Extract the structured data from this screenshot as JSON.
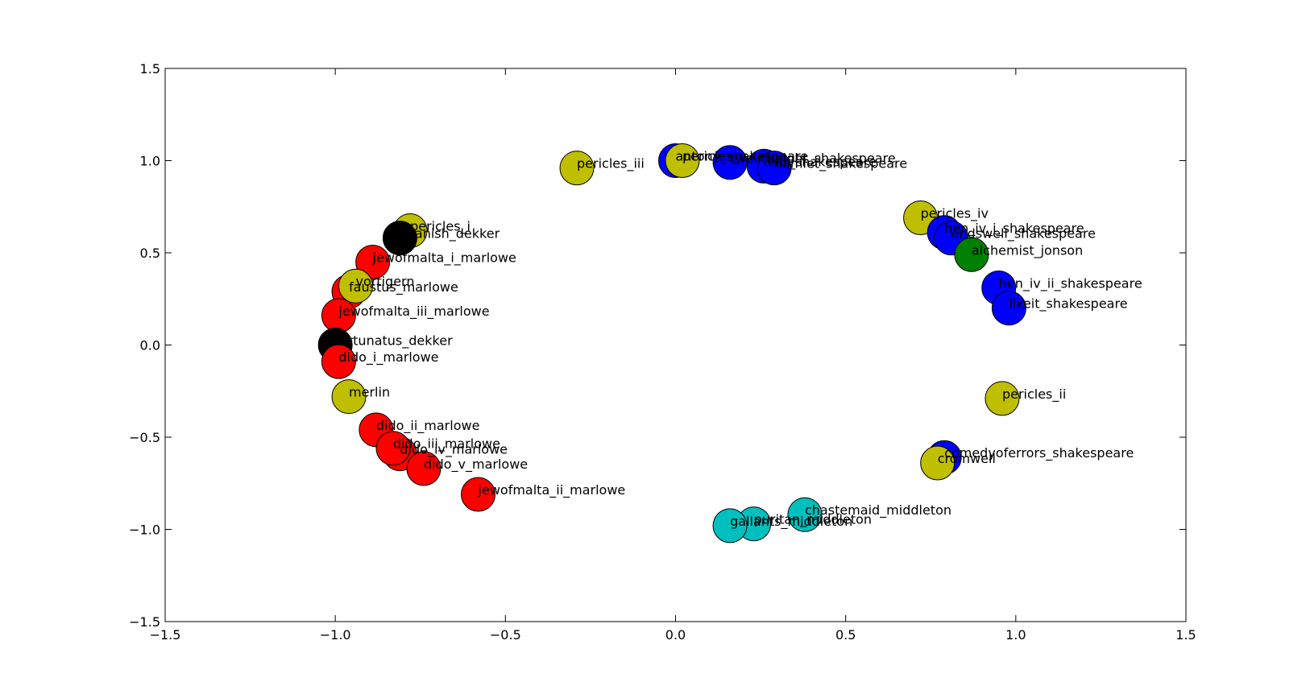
{
  "chart_data": {
    "type": "scatter",
    "title": "",
    "xlabel": "",
    "ylabel": "",
    "xlim": [
      -1.5,
      1.5
    ],
    "ylim": [
      -1.5,
      1.5
    ],
    "grid": false,
    "legend": "none",
    "xticks": [
      "−1.5",
      "−1.0",
      "−0.5",
      "0.0",
      "0.5",
      "1.0",
      "1.5"
    ],
    "yticks": [
      "−1.5",
      "−1.0",
      "−0.5",
      "0.0",
      "0.5",
      "1.0",
      "1.5"
    ],
    "xtick_values": [
      -1.5,
      -1.0,
      -0.5,
      0.0,
      0.5,
      1.0,
      1.5
    ],
    "ytick_values": [
      -1.5,
      -1.0,
      -0.5,
      0.0,
      0.5,
      1.0,
      1.5
    ],
    "colors": {
      "red": "#ff0000",
      "olive": "#bfbf00",
      "black": "#000000",
      "blue": "#0000ff",
      "green": "#008000",
      "cyan": "#00bfbf"
    },
    "points": [
      {
        "label": "pericles_i",
        "x": -0.78,
        "y": 0.62,
        "color": "olive"
      },
      {
        "label": "spanish_dekker",
        "x": -0.81,
        "y": 0.58,
        "color": "black"
      },
      {
        "label": "jewofmalta_i_marlowe",
        "x": -0.89,
        "y": 0.45,
        "color": "red"
      },
      {
        "label": "faustus_marlowe",
        "x": -0.96,
        "y": 0.29,
        "color": "red"
      },
      {
        "label": "vortigern",
        "x": -0.94,
        "y": 0.32,
        "color": "olive"
      },
      {
        "label": "jewofmalta_iii_marlowe",
        "x": -0.99,
        "y": 0.16,
        "color": "red"
      },
      {
        "label": "fortunatus_dekker",
        "x": -1.0,
        "y": 0.0,
        "color": "black"
      },
      {
        "label": "dido_i_marlowe",
        "x": -0.99,
        "y": -0.09,
        "color": "red"
      },
      {
        "label": "merlin",
        "x": -0.96,
        "y": -0.28,
        "color": "olive"
      },
      {
        "label": "dido_ii_marlowe",
        "x": -0.88,
        "y": -0.46,
        "color": "red"
      },
      {
        "label": "dido_iv_marlowe",
        "x": -0.81,
        "y": -0.59,
        "color": "red"
      },
      {
        "label": "dido_iii_marlowe",
        "x": -0.83,
        "y": -0.56,
        "color": "red"
      },
      {
        "label": "dido_v_marlowe",
        "x": -0.74,
        "y": -0.67,
        "color": "red"
      },
      {
        "label": "jewofmalta_ii_marlowe",
        "x": -0.58,
        "y": -0.81,
        "color": "red"
      },
      {
        "label": "pericles_iii",
        "x": -0.29,
        "y": 0.96,
        "color": "olive"
      },
      {
        "label": "antony_shakespeare",
        "x": 0.0,
        "y": 1.0,
        "color": "blue"
      },
      {
        "label": "pericles_v",
        "x": 0.02,
        "y": 1.0,
        "color": "olive"
      },
      {
        "label": "twelfthnight_shakespeare",
        "x": 0.16,
        "y": 0.99,
        "color": "blue"
      },
      {
        "label": "lear_shakespeare",
        "x": 0.26,
        "y": 0.97,
        "color": "blue"
      },
      {
        "label": "hamlet_shakespeare",
        "x": 0.29,
        "y": 0.96,
        "color": "blue"
      },
      {
        "label": "pericles_iv",
        "x": 0.72,
        "y": 0.69,
        "color": "olive"
      },
      {
        "label": "hen_iv_i_shakespeare",
        "x": 0.79,
        "y": 0.61,
        "color": "blue"
      },
      {
        "label": "endswell_shakespeare",
        "x": 0.81,
        "y": 0.58,
        "color": "blue"
      },
      {
        "label": "alchemist_jonson",
        "x": 0.87,
        "y": 0.49,
        "color": "green"
      },
      {
        "label": "hen_iv_ii_shakespeare",
        "x": 0.95,
        "y": 0.31,
        "color": "blue"
      },
      {
        "label": "likeit_shakespeare",
        "x": 0.98,
        "y": 0.2,
        "color": "blue"
      },
      {
        "label": "pericles_ii",
        "x": 0.96,
        "y": -0.29,
        "color": "olive"
      },
      {
        "label": "comedyoferrors_shakespeare",
        "x": 0.79,
        "y": -0.61,
        "color": "blue"
      },
      {
        "label": "cromwell",
        "x": 0.77,
        "y": -0.64,
        "color": "olive"
      },
      {
        "label": "chastemaid_middleton",
        "x": 0.38,
        "y": -0.92,
        "color": "cyan"
      },
      {
        "label": "puritan_middleton",
        "x": 0.23,
        "y": -0.97,
        "color": "cyan"
      },
      {
        "label": "gallants_middleton",
        "x": 0.16,
        "y": -0.98,
        "color": "cyan"
      }
    ]
  }
}
